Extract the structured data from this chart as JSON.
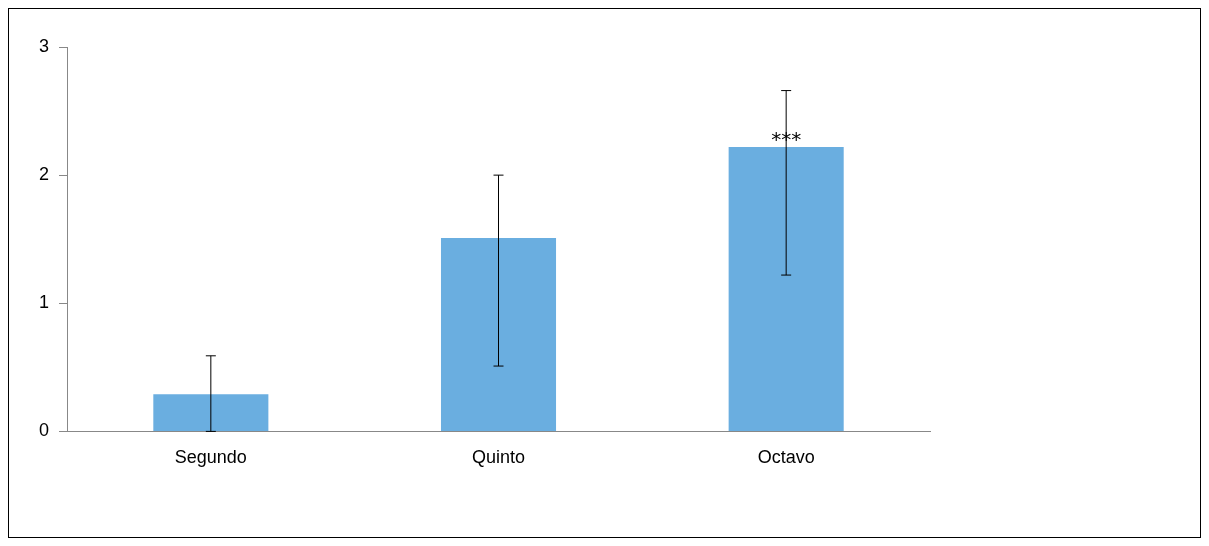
{
  "chart_data": {
    "type": "bar",
    "categories": [
      "Segundo",
      "Quinto",
      "Octavo"
    ],
    "values": [
      0.29,
      1.51,
      2.22
    ],
    "color": "#6aaee0",
    "errors": [
      [
        0,
        0.59
      ],
      [
        0.51,
        2.0
      ],
      [
        1.22,
        2.66
      ]
    ],
    "ylim": [
      0,
      3
    ],
    "yticks": [
      0,
      1,
      2,
      3
    ],
    "grid": false,
    "annotations": [
      {
        "text": "***",
        "x": "Octavo",
        "y": 2.3
      }
    ]
  }
}
